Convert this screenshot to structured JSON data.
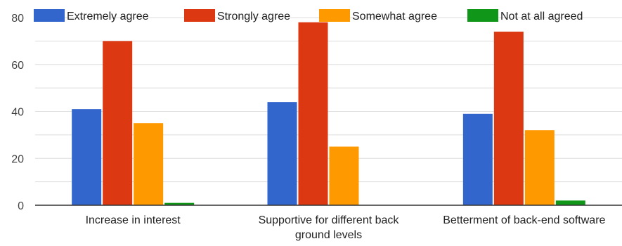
{
  "chart_data": {
    "type": "bar",
    "title": "",
    "xlabel": "",
    "ylabel": "",
    "ylim": [
      0,
      80
    ],
    "yticks": [
      0,
      20,
      40,
      60,
      80
    ],
    "grid": true,
    "legend_position": "top",
    "categories": [
      [
        "Increase in interest"
      ],
      [
        "Supportive for different back",
        "ground levels"
      ],
      [
        "Betterment of back-end software"
      ]
    ],
    "series": [
      {
        "name": "Extremely agree",
        "color": "#3366cc",
        "values": [
          41,
          44,
          39
        ]
      },
      {
        "name": "Strongly agree",
        "color": "#dc3912",
        "values": [
          70,
          78,
          74
        ]
      },
      {
        "name": "Somewhat agree",
        "color": "#ff9900",
        "values": [
          35,
          25,
          32
        ]
      },
      {
        "name": "Not at all agreed",
        "color": "#109618",
        "values": [
          1,
          0,
          2
        ]
      }
    ]
  }
}
